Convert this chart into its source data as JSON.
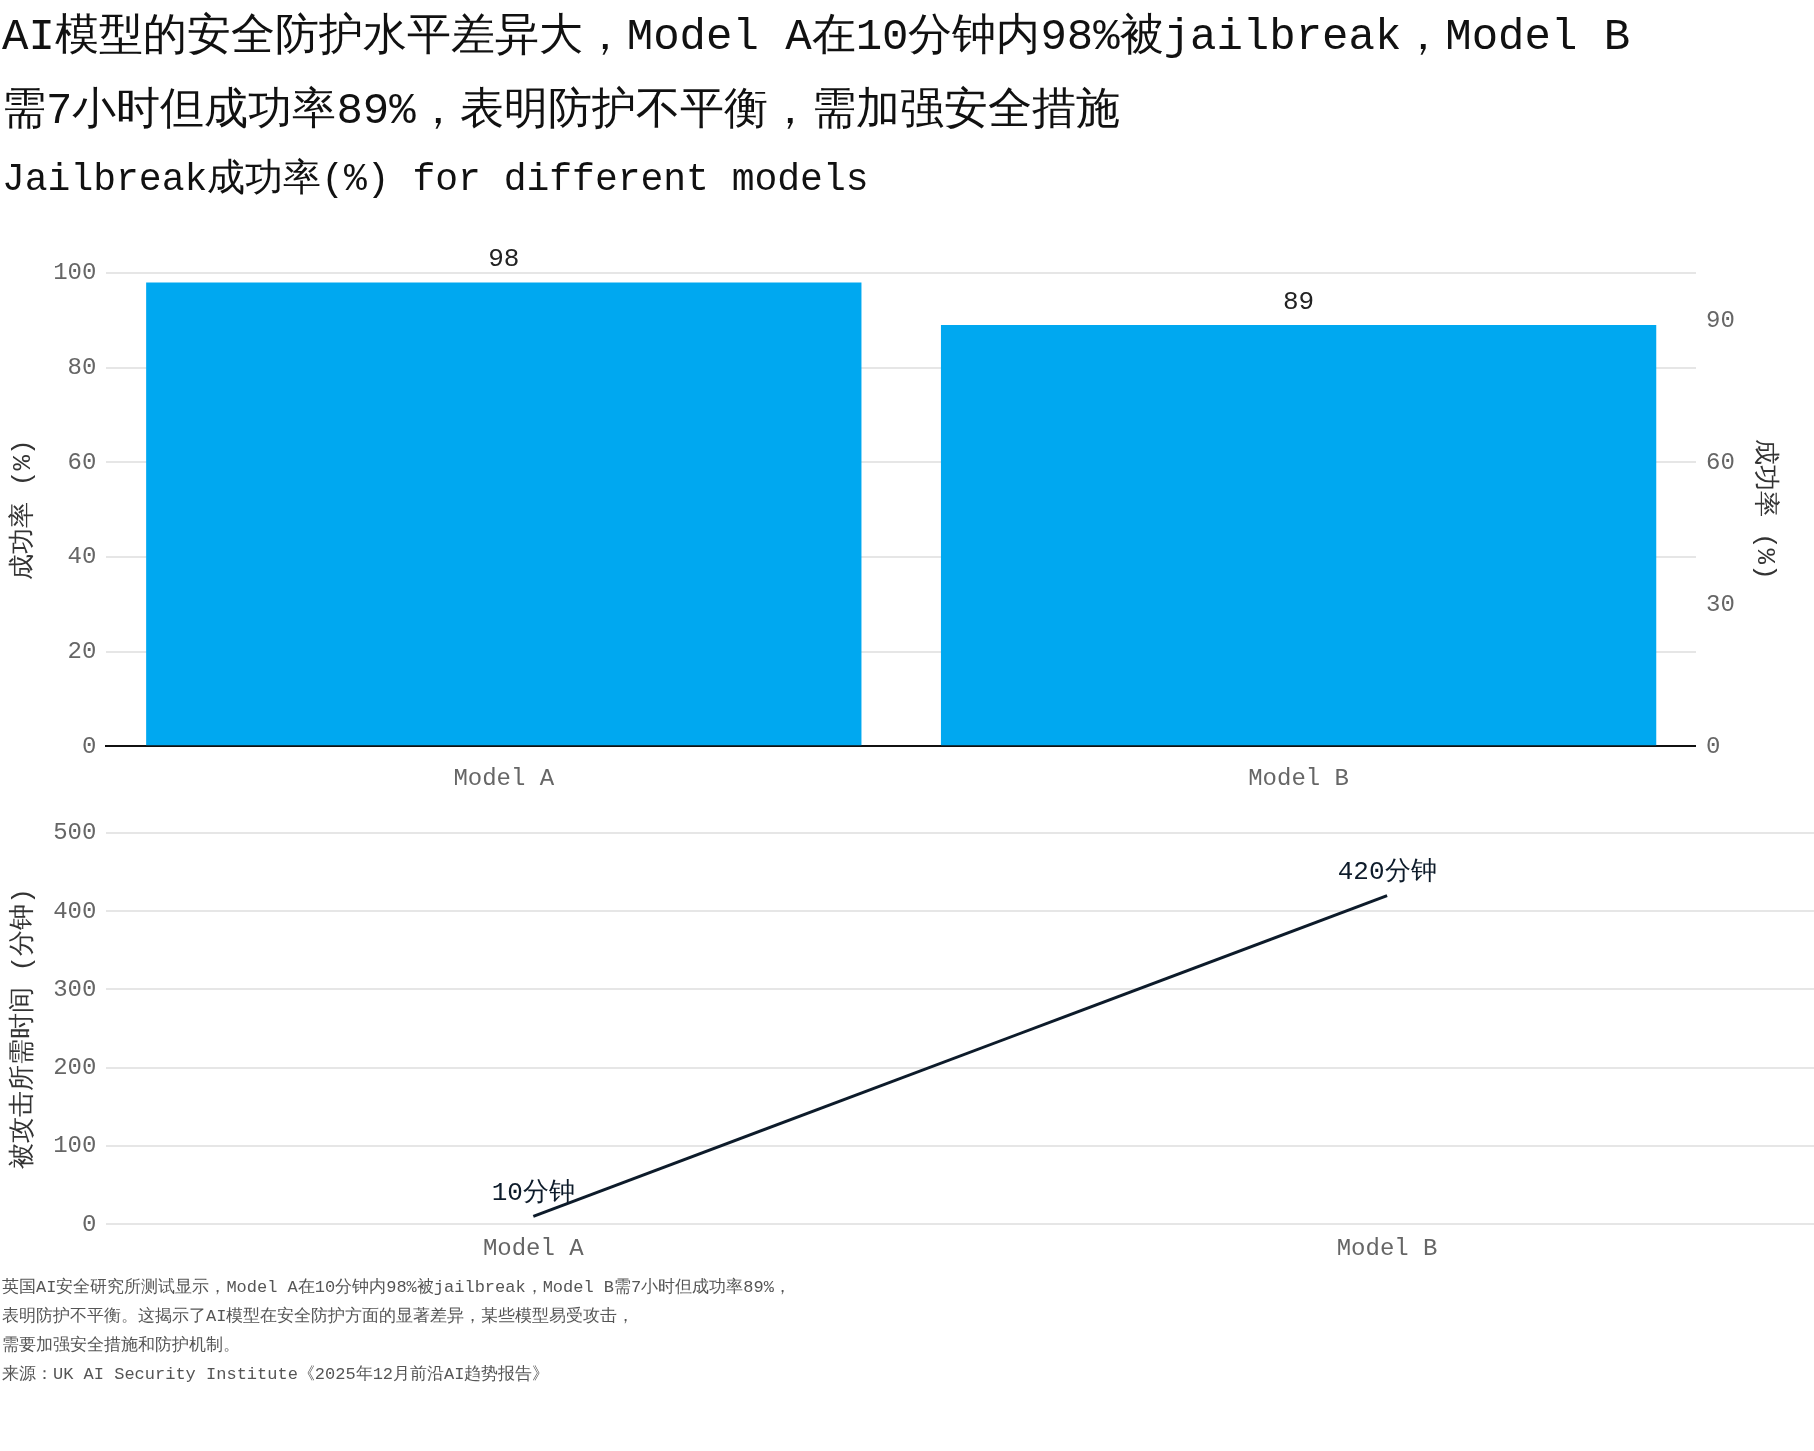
{
  "chart_data": [
    {
      "type": "bar",
      "title": "AI模型的安全防护水平差异大，Model A在10分钟内98%被jailbreak，Model B需7小时但成功率89%，表明防护不平衡，需加强安全措施",
      "subtitle": "Jailbreak成功率(%) for different models",
      "categories": [
        "Model A",
        "Model B"
      ],
      "values": [
        98,
        89
      ],
      "color": "#00a8f0",
      "ylabel": "成功率 (%)",
      "y2label": "成功率 (%)",
      "ylim": [
        0,
        100
      ],
      "yticks": [
        0,
        20,
        40,
        60,
        80,
        100
      ],
      "y2lim": [
        0,
        100
      ],
      "y2ticks": [
        0,
        30,
        60,
        90
      ],
      "data_labels": true,
      "grid": "y",
      "legend": false
    },
    {
      "type": "line",
      "categories": [
        "Model A",
        "Model B"
      ],
      "values": [
        10,
        420
      ],
      "color": "#0d1b2a",
      "value_labels": [
        "10分钟",
        "420分钟"
      ],
      "ylabel": "被攻击所需时间 (分钟)",
      "ylim": [
        0,
        500
      ],
      "yticks": [
        0,
        100,
        200,
        300,
        400,
        500
      ],
      "grid": "y",
      "legend": false,
      "marker": "none",
      "annotations": [
        "英国AI安全研究所测试显示，Model A在10分钟内98%被jailbreak，Model B需7小时但成功率89%，",
        "表明防护不平衡。这揭示了AI模型在安全防护方面的显著差异，某些模型易受攻击，",
        "需要加强安全措施和防护机制。",
        "来源：UK AI Security Institute《2025年12月前沿AI趋势报告》"
      ]
    }
  ]
}
